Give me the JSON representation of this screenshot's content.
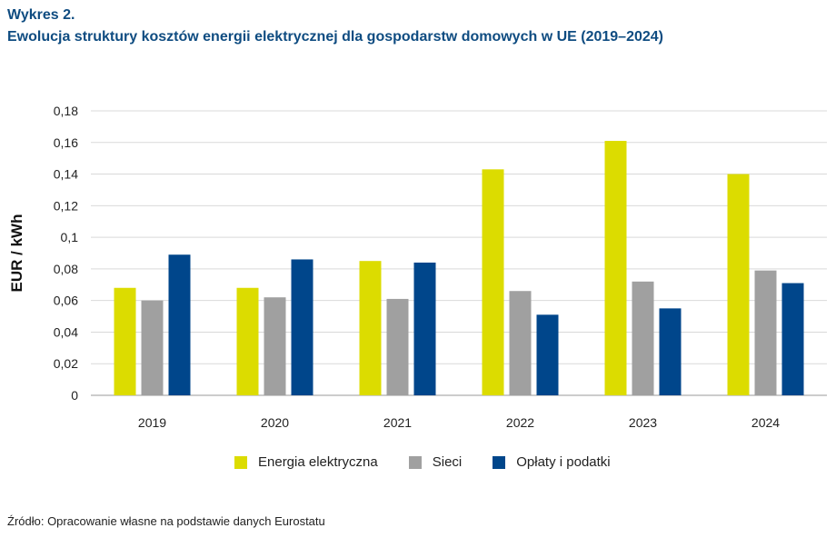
{
  "header": {
    "label": "Wykres 2.",
    "title": "Ewolucja struktury kosztów energii elektrycznej dla gospodarstw domowych w UE (2019–2024)"
  },
  "chart_data": {
    "type": "bar",
    "categories": [
      "2019",
      "2020",
      "2021",
      "2022",
      "2023",
      "2024"
    ],
    "series": [
      {
        "name": "Energia elektryczna",
        "color": "#dcdc00",
        "values": [
          0.068,
          0.068,
          0.085,
          0.143,
          0.161,
          0.14
        ]
      },
      {
        "name": "Sieci",
        "color": "#a0a0a0",
        "values": [
          0.06,
          0.062,
          0.061,
          0.066,
          0.072,
          0.079
        ]
      },
      {
        "name": "Opłaty i podatki",
        "color": "#00468b",
        "values": [
          0.089,
          0.086,
          0.084,
          0.051,
          0.055,
          0.071
        ]
      }
    ],
    "ylabel": "EUR / kWh",
    "ylim": [
      0,
      0.18
    ],
    "yticks": [
      "0",
      "0,02",
      "0,04",
      "0,06",
      "0,08",
      "0,1",
      "0,12",
      "0,14",
      "0,16",
      "0,18"
    ],
    "grid": true,
    "legend_position": "bottom"
  },
  "source": "Źródło: Opracowanie własne na podstawie danych Eurostatu"
}
